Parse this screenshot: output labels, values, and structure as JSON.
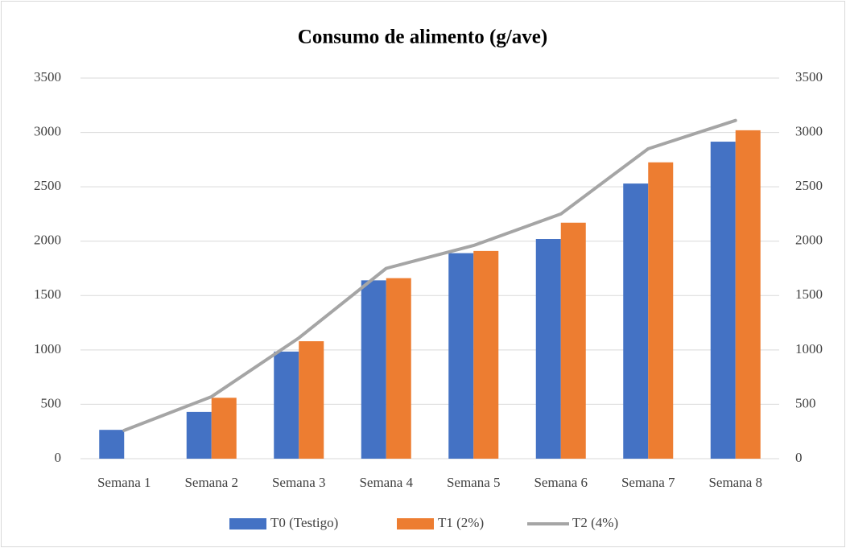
{
  "chart_data": {
    "type": "bar",
    "title": "Consumo de alimento (g/ave)",
    "categories": [
      "Semana 1",
      "Semana 2",
      "Semana 3",
      "Semana 4",
      "Semana 5",
      "Semana 6",
      "Semana 7",
      "Semana 8"
    ],
    "series": [
      {
        "name": "T0 (Testigo)",
        "color": "#4472c4",
        "type": "bar",
        "values": [
          265,
          430,
          985,
          1640,
          1890,
          2020,
          2530,
          2915
        ]
      },
      {
        "name": "T1 (2%)",
        "color": "#ed7d31",
        "type": "bar",
        "values": [
          null,
          560,
          1080,
          1660,
          1910,
          2170,
          2725,
          3020
        ]
      },
      {
        "name": "T2 (4%)",
        "color": "#a5a5a5",
        "type": "line",
        "values": [
          260,
          570,
          1110,
          1750,
          1960,
          2250,
          2850,
          3110
        ]
      }
    ],
    "ylim": [
      0,
      3500
    ],
    "yticks": [
      0,
      500,
      1000,
      1500,
      2000,
      2500,
      3000,
      3500
    ],
    "y2lim": [
      0,
      3500
    ],
    "y2ticks": [
      0,
      500,
      1000,
      1500,
      2000,
      2500,
      3000,
      3500
    ],
    "grid": true,
    "legend": "bottom"
  }
}
